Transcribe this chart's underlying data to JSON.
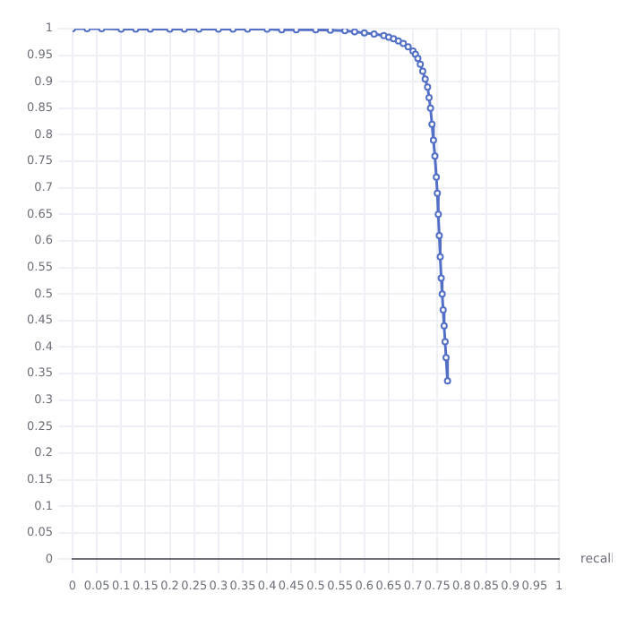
{
  "chart_data": {
    "type": "line",
    "xlabel": "recall",
    "xlim": [
      0,
      1
    ],
    "ylim": [
      0,
      1
    ],
    "xticks": [
      0,
      0.05,
      0.1,
      0.15,
      0.2,
      0.25,
      0.3,
      0.35,
      0.4,
      0.45,
      0.5,
      0.55,
      0.6,
      0.65,
      0.7,
      0.75,
      0.8,
      0.85,
      0.9,
      0.95,
      1
    ],
    "yticks": [
      0,
      0.05,
      0.1,
      0.15,
      0.2,
      0.25,
      0.3,
      0.35,
      0.4,
      0.45,
      0.5,
      0.55,
      0.6,
      0.65,
      0.7,
      0.75,
      0.8,
      0.85,
      0.9,
      0.95,
      1
    ],
    "grid": true,
    "marker": "circle",
    "line_style": "solid",
    "series": [
      {
        "color": "#5470c6",
        "x": [
          0,
          0.03,
          0.06,
          0.1,
          0.13,
          0.16,
          0.2,
          0.23,
          0.26,
          0.3,
          0.33,
          0.36,
          0.4,
          0.43,
          0.46,
          0.5,
          0.53,
          0.56,
          0.58,
          0.6,
          0.62,
          0.64,
          0.65,
          0.66,
          0.67,
          0.68,
          0.69,
          0.7,
          0.705,
          0.71,
          0.715,
          0.72,
          0.725,
          0.73,
          0.733,
          0.736,
          0.739,
          0.742,
          0.745,
          0.748,
          0.75,
          0.752,
          0.754,
          0.756,
          0.758,
          0.76,
          0.762,
          0.764,
          0.766,
          0.768,
          0.771
        ],
        "values": [
          1,
          1,
          1,
          0.999,
          0.999,
          0.999,
          0.999,
          0.999,
          0.999,
          0.999,
          0.999,
          0.999,
          0.999,
          0.998,
          0.998,
          0.998,
          0.997,
          0.996,
          0.994,
          0.992,
          0.99,
          0.987,
          0.984,
          0.981,
          0.977,
          0.972,
          0.966,
          0.958,
          0.952,
          0.944,
          0.933,
          0.92,
          0.905,
          0.89,
          0.87,
          0.85,
          0.82,
          0.79,
          0.76,
          0.72,
          0.69,
          0.65,
          0.61,
          0.57,
          0.53,
          0.5,
          0.47,
          0.44,
          0.41,
          0.38,
          0.336
        ]
      }
    ]
  }
}
